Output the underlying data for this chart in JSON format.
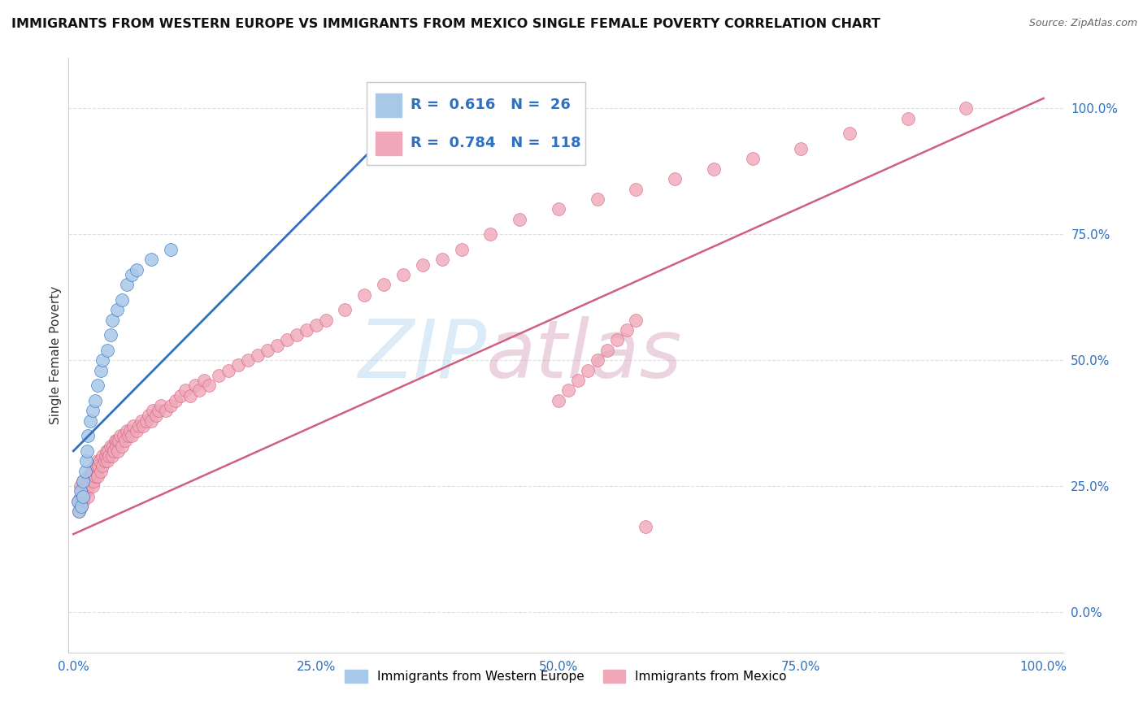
{
  "title": "IMMIGRANTS FROM WESTERN EUROPE VS IMMIGRANTS FROM MEXICO SINGLE FEMALE POVERTY CORRELATION CHART",
  "source": "Source: ZipAtlas.com",
  "ylabel": "Single Female Poverty",
  "blue_R": 0.616,
  "blue_N": 26,
  "pink_R": 0.784,
  "pink_N": 118,
  "blue_color": "#A8C8E8",
  "pink_color": "#F0A8B8",
  "blue_line_color": "#3070C0",
  "pink_line_color": "#D06080",
  "legend_label_blue": "Immigrants from Western Europe",
  "legend_label_pink": "Immigrants from Mexico",
  "watermark_zip": "ZIP",
  "watermark_atlas": "atlas",
  "background_color": "#FFFFFF",
  "grid_color": "#E0E0E0",
  "ytick_labels": [
    "0.0%",
    "25.0%",
    "50.0%",
    "75.0%",
    "100.0%"
  ],
  "ytick_values": [
    0.0,
    0.25,
    0.5,
    0.75,
    1.0
  ],
  "xtick_labels": [
    "0.0%",
    "25.0%",
    "50.0%",
    "75.0%",
    "100.0%"
  ],
  "xtick_values": [
    0.0,
    0.25,
    0.5,
    0.75,
    1.0
  ],
  "blue_x": [
    0.005,
    0.006,
    0.007,
    0.008,
    0.01,
    0.01,
    0.012,
    0.013,
    0.014,
    0.015,
    0.017,
    0.02,
    0.022,
    0.025,
    0.028,
    0.03,
    0.035,
    0.038,
    0.04,
    0.045,
    0.05,
    0.055,
    0.06,
    0.065,
    0.08,
    0.1
  ],
  "blue_y": [
    0.22,
    0.2,
    0.24,
    0.21,
    0.23,
    0.26,
    0.28,
    0.3,
    0.32,
    0.35,
    0.38,
    0.4,
    0.42,
    0.45,
    0.48,
    0.5,
    0.52,
    0.55,
    0.58,
    0.6,
    0.62,
    0.65,
    0.67,
    0.68,
    0.7,
    0.72
  ],
  "blue_line_x0": 0.0,
  "blue_line_x1": 0.36,
  "blue_line_y0": 0.32,
  "blue_line_y1": 1.02,
  "pink_line_x0": 0.0,
  "pink_line_x1": 1.0,
  "pink_line_y0": 0.155,
  "pink_line_y1": 1.02,
  "pink_x": [
    0.005,
    0.006,
    0.007,
    0.007,
    0.008,
    0.009,
    0.01,
    0.01,
    0.011,
    0.012,
    0.013,
    0.014,
    0.015,
    0.015,
    0.016,
    0.017,
    0.018,
    0.019,
    0.02,
    0.02,
    0.021,
    0.022,
    0.022,
    0.023,
    0.024,
    0.025,
    0.025,
    0.026,
    0.027,
    0.028,
    0.03,
    0.03,
    0.032,
    0.033,
    0.034,
    0.035,
    0.036,
    0.037,
    0.038,
    0.04,
    0.041,
    0.042,
    0.043,
    0.044,
    0.045,
    0.046,
    0.047,
    0.048,
    0.05,
    0.052,
    0.053,
    0.055,
    0.057,
    0.058,
    0.06,
    0.062,
    0.065,
    0.068,
    0.07,
    0.072,
    0.075,
    0.078,
    0.08,
    0.082,
    0.085,
    0.088,
    0.09,
    0.095,
    0.1,
    0.105,
    0.11,
    0.115,
    0.12,
    0.125,
    0.13,
    0.135,
    0.14,
    0.15,
    0.16,
    0.17,
    0.18,
    0.19,
    0.2,
    0.21,
    0.22,
    0.23,
    0.24,
    0.25,
    0.26,
    0.28,
    0.3,
    0.32,
    0.34,
    0.36,
    0.38,
    0.4,
    0.43,
    0.46,
    0.5,
    0.54,
    0.58,
    0.62,
    0.66,
    0.7,
    0.75,
    0.8,
    0.86,
    0.92,
    0.5,
    0.51,
    0.52,
    0.53,
    0.54,
    0.55,
    0.56,
    0.57,
    0.58,
    0.59
  ],
  "pink_y": [
    0.22,
    0.2,
    0.23,
    0.25,
    0.21,
    0.24,
    0.22,
    0.26,
    0.23,
    0.25,
    0.24,
    0.26,
    0.23,
    0.27,
    0.25,
    0.27,
    0.26,
    0.28,
    0.25,
    0.28,
    0.26,
    0.27,
    0.29,
    0.28,
    0.29,
    0.27,
    0.3,
    0.29,
    0.3,
    0.28,
    0.29,
    0.31,
    0.3,
    0.31,
    0.32,
    0.3,
    0.32,
    0.31,
    0.33,
    0.31,
    0.33,
    0.32,
    0.34,
    0.33,
    0.34,
    0.32,
    0.34,
    0.35,
    0.33,
    0.35,
    0.34,
    0.36,
    0.35,
    0.36,
    0.35,
    0.37,
    0.36,
    0.37,
    0.38,
    0.37,
    0.38,
    0.39,
    0.38,
    0.4,
    0.39,
    0.4,
    0.41,
    0.4,
    0.41,
    0.42,
    0.43,
    0.44,
    0.43,
    0.45,
    0.44,
    0.46,
    0.45,
    0.47,
    0.48,
    0.49,
    0.5,
    0.51,
    0.52,
    0.53,
    0.54,
    0.55,
    0.56,
    0.57,
    0.58,
    0.6,
    0.63,
    0.65,
    0.67,
    0.69,
    0.7,
    0.72,
    0.75,
    0.78,
    0.8,
    0.82,
    0.84,
    0.86,
    0.88,
    0.9,
    0.92,
    0.95,
    0.98,
    1.0,
    0.42,
    0.44,
    0.46,
    0.48,
    0.5,
    0.52,
    0.54,
    0.56,
    0.58,
    0.17
  ]
}
